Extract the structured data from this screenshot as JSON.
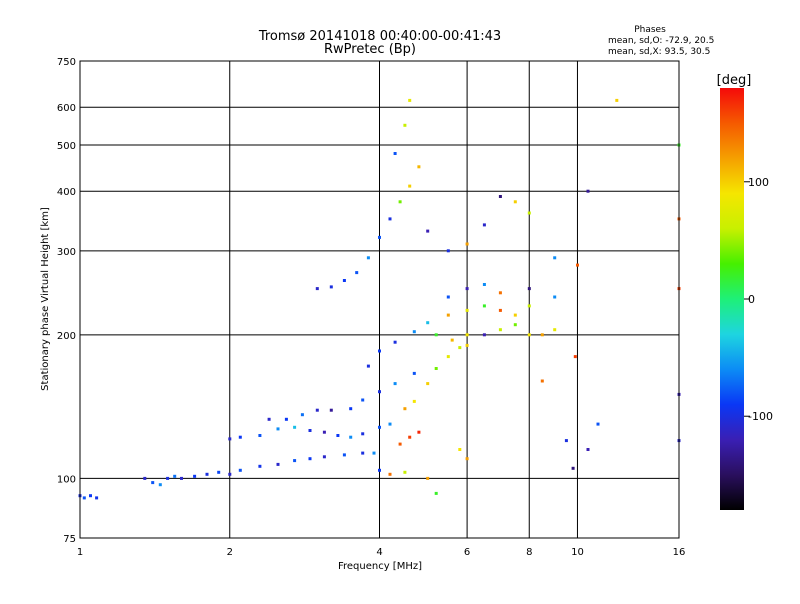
{
  "chart_data": {
    "type": "scatter",
    "title": "Tromsø 20141018 00:40:00-00:41:43",
    "subtitle": "RwPretec (Bp)",
    "stats_header": "Phases",
    "stats_o": "mean, sd,O: -72.9, 20.5",
    "stats_x": "mean, sd,X: 93.5, 30.5",
    "xlabel": "Frequency [MHz]",
    "ylabel": "Stationary phase Virtual Height [km]",
    "x_scale": "log",
    "y_scale": "log",
    "xlim": [
      1,
      16
    ],
    "ylim": [
      75,
      750
    ],
    "x_ticks": [
      1,
      2,
      4,
      6,
      8,
      10,
      16
    ],
    "x_tick_labels": [
      "1",
      "2",
      "4",
      "6",
      "8",
      "10",
      "16"
    ],
    "y_ticks": [
      75,
      100,
      200,
      300,
      400,
      500,
      600,
      750
    ],
    "y_tick_labels": [
      "75",
      "100",
      "200",
      "300",
      "400",
      "500",
      "600",
      "750"
    ],
    "grid": true,
    "colorbar": {
      "label": "[deg]",
      "range": [
        -180,
        180
      ],
      "ticks": [
        100,
        0,
        -100
      ],
      "tick_labels": [
        "100",
        "0",
        "-100"
      ],
      "colors": [
        "#000000",
        "#2a0f5e",
        "#3a1fb4",
        "#0a37f5",
        "#0c8cf5",
        "#1ed5e0",
        "#1ef078",
        "#46f000",
        "#c8f000",
        "#f5e600",
        "#f5a000",
        "#f55a00",
        "#f50a0a"
      ]
    },
    "series": [
      {
        "point_groups": [
          [
            1.0,
            92,
            -100
          ],
          [
            1.02,
            91,
            -80
          ],
          [
            1.05,
            92,
            -90
          ],
          [
            1.08,
            91,
            -95
          ],
          [
            1.35,
            100,
            -110
          ],
          [
            1.4,
            98,
            -80
          ],
          [
            1.45,
            97,
            -60
          ],
          [
            1.5,
            100,
            -100
          ],
          [
            1.55,
            101,
            -70
          ],
          [
            1.6,
            100,
            -110
          ],
          [
            1.7,
            101,
            -90
          ],
          [
            1.8,
            102,
            -100
          ],
          [
            1.9,
            103,
            -85
          ],
          [
            2.0,
            102,
            -110
          ],
          [
            2.1,
            104,
            -80
          ],
          [
            2.3,
            106,
            -95
          ],
          [
            2.5,
            107,
            -110
          ],
          [
            2.7,
            109,
            -80
          ],
          [
            2.9,
            110,
            -90
          ],
          [
            3.1,
            111,
            -110
          ],
          [
            3.4,
            112,
            -80
          ],
          [
            3.7,
            113,
            -100
          ],
          [
            3.9,
            113,
            -60
          ],
          [
            2.0,
            121,
            -110
          ],
          [
            2.1,
            122,
            -90
          ],
          [
            2.3,
            123,
            -80
          ],
          [
            2.5,
            127,
            -60
          ],
          [
            2.7,
            128,
            -40
          ],
          [
            2.9,
            126,
            -100
          ],
          [
            3.1,
            125,
            -120
          ],
          [
            3.3,
            123,
            -90
          ],
          [
            3.5,
            122,
            -60
          ],
          [
            3.7,
            124,
            -100
          ],
          [
            4.0,
            128,
            -80
          ],
          [
            4.2,
            130,
            -60
          ],
          [
            2.4,
            133,
            -110
          ],
          [
            2.6,
            133,
            -90
          ],
          [
            2.8,
            136,
            -70
          ],
          [
            3.0,
            139,
            -110
          ],
          [
            3.2,
            139,
            -130
          ],
          [
            3.5,
            140,
            -90
          ],
          [
            3.7,
            146,
            -80
          ],
          [
            4.0,
            152,
            -100
          ],
          [
            4.3,
            158,
            -60
          ],
          [
            4.7,
            166,
            -80
          ],
          [
            3.8,
            172,
            -100
          ],
          [
            4.0,
            185,
            -90
          ],
          [
            4.3,
            193,
            -100
          ],
          [
            4.7,
            203,
            -60
          ],
          [
            5.0,
            212,
            -40
          ],
          [
            4.4,
            118,
            150
          ],
          [
            4.6,
            122,
            160
          ],
          [
            4.8,
            125,
            170
          ],
          [
            4.5,
            140,
            120
          ],
          [
            4.7,
            145,
            90
          ],
          [
            5.0,
            158,
            100
          ],
          [
            5.2,
            170,
            40
          ],
          [
            5.5,
            180,
            80
          ],
          [
            5.8,
            188,
            60
          ],
          [
            6.0,
            190,
            100
          ],
          [
            5.2,
            200,
            20
          ],
          [
            5.6,
            195,
            110
          ],
          [
            6.0,
            200,
            90
          ],
          [
            6.5,
            200,
            -120
          ],
          [
            7.0,
            205,
            60
          ],
          [
            7.5,
            210,
            40
          ],
          [
            8.0,
            200,
            90
          ],
          [
            8.5,
            200,
            120
          ],
          [
            9.0,
            205,
            80
          ],
          [
            5.5,
            220,
            120
          ],
          [
            6.0,
            225,
            80
          ],
          [
            6.5,
            230,
            20
          ],
          [
            7.0,
            225,
            150
          ],
          [
            7.5,
            220,
            100
          ],
          [
            8.0,
            230,
            60
          ],
          [
            5.5,
            240,
            -80
          ],
          [
            6.0,
            250,
            -120
          ],
          [
            6.5,
            255,
            -60
          ],
          [
            7.0,
            245,
            140
          ],
          [
            8.0,
            250,
            -140
          ],
          [
            9.0,
            240,
            -60
          ],
          [
            3.0,
            250,
            -110
          ],
          [
            3.2,
            252,
            -100
          ],
          [
            3.4,
            260,
            -90
          ],
          [
            3.6,
            270,
            -80
          ],
          [
            3.8,
            290,
            -60
          ],
          [
            4.0,
            320,
            -80
          ],
          [
            4.2,
            350,
            -100
          ],
          [
            4.4,
            380,
            40
          ],
          [
            4.6,
            410,
            100
          ],
          [
            4.8,
            450,
            110
          ],
          [
            4.3,
            480,
            -80
          ],
          [
            4.5,
            550,
            60
          ],
          [
            4.6,
            620,
            80
          ],
          [
            5.0,
            330,
            -120
          ],
          [
            5.5,
            300,
            -100
          ],
          [
            6.0,
            310,
            120
          ],
          [
            6.5,
            340,
            -110
          ],
          [
            7.0,
            390,
            -140
          ],
          [
            7.5,
            380,
            100
          ],
          [
            8.0,
            360,
            60
          ],
          [
            9.0,
            290,
            -60
          ],
          [
            10.0,
            280,
            150
          ],
          [
            10.5,
            400,
            -130
          ],
          [
            12.0,
            620,
            100
          ],
          [
            16.0,
            500,
            20
          ],
          [
            16.0,
            350,
            150
          ],
          [
            16.0,
            250,
            160
          ],
          [
            16.0,
            150,
            -120
          ],
          [
            16.0,
            120,
            -110
          ],
          [
            9.9,
            180,
            160
          ],
          [
            9.8,
            105,
            -140
          ],
          [
            4.0,
            104,
            -90
          ],
          [
            4.2,
            102,
            140
          ],
          [
            4.5,
            103,
            60
          ],
          [
            5.0,
            100,
            120
          ],
          [
            5.2,
            93,
            20
          ],
          [
            5.8,
            115,
            90
          ],
          [
            6.0,
            110,
            120
          ],
          [
            9.5,
            120,
            -100
          ],
          [
            11.0,
            130,
            -80
          ],
          [
            10.5,
            115,
            -120
          ],
          [
            8.5,
            160,
            140
          ]
        ]
      }
    ]
  }
}
